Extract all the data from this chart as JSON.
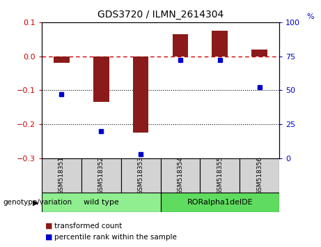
{
  "title": "GDS3720 / ILMN_2614304",
  "samples": [
    "GSM518351",
    "GSM518352",
    "GSM518353",
    "GSM518354",
    "GSM518355",
    "GSM518356"
  ],
  "red_values": [
    -0.02,
    -0.135,
    -0.225,
    0.065,
    0.075,
    0.02
  ],
  "blue_values_pct": [
    47,
    20,
    3,
    72,
    72,
    52
  ],
  "ylim_left": [
    -0.3,
    0.1
  ],
  "ylim_right": [
    0,
    100
  ],
  "yticks_left": [
    -0.3,
    -0.2,
    -0.1,
    0.0,
    0.1
  ],
  "yticks_right": [
    0,
    25,
    50,
    75,
    100
  ],
  "bar_color": "#8B1A1A",
  "dot_color": "#0000CD",
  "zero_line_color": "#CC0000",
  "dotted_line_color": "#000000",
  "legend_red_label": "transformed count",
  "legend_blue_label": "percentile rank within the sample",
  "genotype_label": "genotype/variation",
  "sample_box_color": "#d3d3d3",
  "group_data": [
    {
      "label": "wild type",
      "start": 0,
      "end": 3,
      "color": "#90EE90"
    },
    {
      "label": "RORalpha1delDE",
      "start": 3,
      "end": 6,
      "color": "#5fdc5f"
    }
  ]
}
